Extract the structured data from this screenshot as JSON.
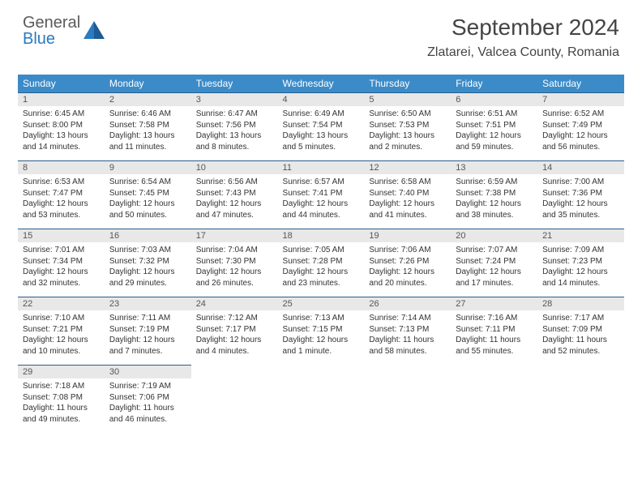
{
  "logo": {
    "line1": "General",
    "line2": "Blue"
  },
  "title": "September 2024",
  "location": "Zlatarei, Valcea County, Romania",
  "colors": {
    "header_bg": "#3b8bc9",
    "header_text": "#ffffff",
    "daynum_bg": "#e8e8e8",
    "daynum_border": "#2a5e8a",
    "logo_gray": "#5a5a5a",
    "logo_blue": "#2a7ac0"
  },
  "weekdays": [
    "Sunday",
    "Monday",
    "Tuesday",
    "Wednesday",
    "Thursday",
    "Friday",
    "Saturday"
  ],
  "days": [
    {
      "n": "1",
      "sunrise": "Sunrise: 6:45 AM",
      "sunset": "Sunset: 8:00 PM",
      "day": "Daylight: 13 hours and 14 minutes."
    },
    {
      "n": "2",
      "sunrise": "Sunrise: 6:46 AM",
      "sunset": "Sunset: 7:58 PM",
      "day": "Daylight: 13 hours and 11 minutes."
    },
    {
      "n": "3",
      "sunrise": "Sunrise: 6:47 AM",
      "sunset": "Sunset: 7:56 PM",
      "day": "Daylight: 13 hours and 8 minutes."
    },
    {
      "n": "4",
      "sunrise": "Sunrise: 6:49 AM",
      "sunset": "Sunset: 7:54 PM",
      "day": "Daylight: 13 hours and 5 minutes."
    },
    {
      "n": "5",
      "sunrise": "Sunrise: 6:50 AM",
      "sunset": "Sunset: 7:53 PM",
      "day": "Daylight: 13 hours and 2 minutes."
    },
    {
      "n": "6",
      "sunrise": "Sunrise: 6:51 AM",
      "sunset": "Sunset: 7:51 PM",
      "day": "Daylight: 12 hours and 59 minutes."
    },
    {
      "n": "7",
      "sunrise": "Sunrise: 6:52 AM",
      "sunset": "Sunset: 7:49 PM",
      "day": "Daylight: 12 hours and 56 minutes."
    },
    {
      "n": "8",
      "sunrise": "Sunrise: 6:53 AM",
      "sunset": "Sunset: 7:47 PM",
      "day": "Daylight: 12 hours and 53 minutes."
    },
    {
      "n": "9",
      "sunrise": "Sunrise: 6:54 AM",
      "sunset": "Sunset: 7:45 PM",
      "day": "Daylight: 12 hours and 50 minutes."
    },
    {
      "n": "10",
      "sunrise": "Sunrise: 6:56 AM",
      "sunset": "Sunset: 7:43 PM",
      "day": "Daylight: 12 hours and 47 minutes."
    },
    {
      "n": "11",
      "sunrise": "Sunrise: 6:57 AM",
      "sunset": "Sunset: 7:41 PM",
      "day": "Daylight: 12 hours and 44 minutes."
    },
    {
      "n": "12",
      "sunrise": "Sunrise: 6:58 AM",
      "sunset": "Sunset: 7:40 PM",
      "day": "Daylight: 12 hours and 41 minutes."
    },
    {
      "n": "13",
      "sunrise": "Sunrise: 6:59 AM",
      "sunset": "Sunset: 7:38 PM",
      "day": "Daylight: 12 hours and 38 minutes."
    },
    {
      "n": "14",
      "sunrise": "Sunrise: 7:00 AM",
      "sunset": "Sunset: 7:36 PM",
      "day": "Daylight: 12 hours and 35 minutes."
    },
    {
      "n": "15",
      "sunrise": "Sunrise: 7:01 AM",
      "sunset": "Sunset: 7:34 PM",
      "day": "Daylight: 12 hours and 32 minutes."
    },
    {
      "n": "16",
      "sunrise": "Sunrise: 7:03 AM",
      "sunset": "Sunset: 7:32 PM",
      "day": "Daylight: 12 hours and 29 minutes."
    },
    {
      "n": "17",
      "sunrise": "Sunrise: 7:04 AM",
      "sunset": "Sunset: 7:30 PM",
      "day": "Daylight: 12 hours and 26 minutes."
    },
    {
      "n": "18",
      "sunrise": "Sunrise: 7:05 AM",
      "sunset": "Sunset: 7:28 PM",
      "day": "Daylight: 12 hours and 23 minutes."
    },
    {
      "n": "19",
      "sunrise": "Sunrise: 7:06 AM",
      "sunset": "Sunset: 7:26 PM",
      "day": "Daylight: 12 hours and 20 minutes."
    },
    {
      "n": "20",
      "sunrise": "Sunrise: 7:07 AM",
      "sunset": "Sunset: 7:24 PM",
      "day": "Daylight: 12 hours and 17 minutes."
    },
    {
      "n": "21",
      "sunrise": "Sunrise: 7:09 AM",
      "sunset": "Sunset: 7:23 PM",
      "day": "Daylight: 12 hours and 14 minutes."
    },
    {
      "n": "22",
      "sunrise": "Sunrise: 7:10 AM",
      "sunset": "Sunset: 7:21 PM",
      "day": "Daylight: 12 hours and 10 minutes."
    },
    {
      "n": "23",
      "sunrise": "Sunrise: 7:11 AM",
      "sunset": "Sunset: 7:19 PM",
      "day": "Daylight: 12 hours and 7 minutes."
    },
    {
      "n": "24",
      "sunrise": "Sunrise: 7:12 AM",
      "sunset": "Sunset: 7:17 PM",
      "day": "Daylight: 12 hours and 4 minutes."
    },
    {
      "n": "25",
      "sunrise": "Sunrise: 7:13 AM",
      "sunset": "Sunset: 7:15 PM",
      "day": "Daylight: 12 hours and 1 minute."
    },
    {
      "n": "26",
      "sunrise": "Sunrise: 7:14 AM",
      "sunset": "Sunset: 7:13 PM",
      "day": "Daylight: 11 hours and 58 minutes."
    },
    {
      "n": "27",
      "sunrise": "Sunrise: 7:16 AM",
      "sunset": "Sunset: 7:11 PM",
      "day": "Daylight: 11 hours and 55 minutes."
    },
    {
      "n": "28",
      "sunrise": "Sunrise: 7:17 AM",
      "sunset": "Sunset: 7:09 PM",
      "day": "Daylight: 11 hours and 52 minutes."
    },
    {
      "n": "29",
      "sunrise": "Sunrise: 7:18 AM",
      "sunset": "Sunset: 7:08 PM",
      "day": "Daylight: 11 hours and 49 minutes."
    },
    {
      "n": "30",
      "sunrise": "Sunrise: 7:19 AM",
      "sunset": "Sunset: 7:06 PM",
      "day": "Daylight: 11 hours and 46 minutes."
    }
  ]
}
